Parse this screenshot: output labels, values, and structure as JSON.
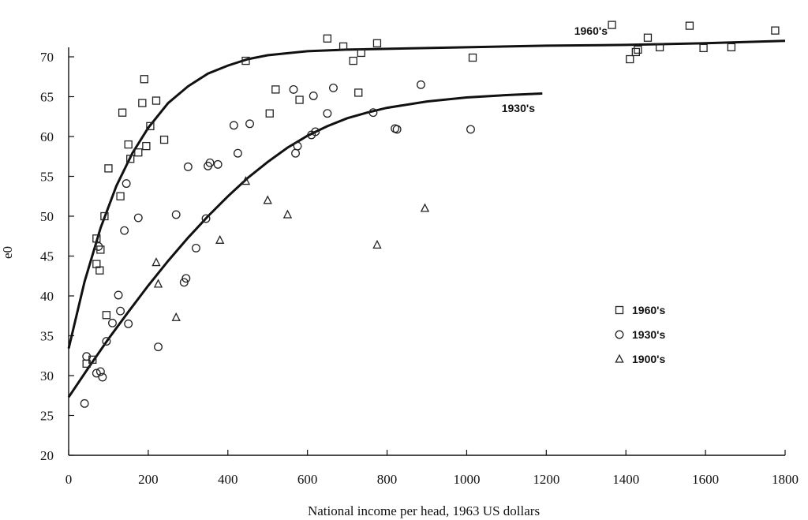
{
  "chart_data": {
    "type": "scatter",
    "title": "",
    "xlabel": "National income per head, 1963 US dollars",
    "ylabel": "e0",
    "xlim": [
      0,
      1800
    ],
    "ylim": [
      20,
      72
    ],
    "x_ticks": [
      0,
      200,
      400,
      600,
      800,
      1000,
      1200,
      1400,
      1600,
      1800
    ],
    "y_ticks": [
      20,
      25,
      30,
      35,
      40,
      45,
      50,
      55,
      60,
      65,
      70
    ],
    "grid": false,
    "legend_position": "bottom-right",
    "series": [
      {
        "name": "1960's",
        "marker": "square",
        "points": [
          [
            45,
            31.5
          ],
          [
            60,
            32
          ],
          [
            70,
            44
          ],
          [
            70,
            47.2
          ],
          [
            78,
            43.2
          ],
          [
            80,
            45.8
          ],
          [
            90,
            50
          ],
          [
            95,
            37.6
          ],
          [
            100,
            56
          ],
          [
            130,
            52.5
          ],
          [
            135,
            63
          ],
          [
            150,
            59
          ],
          [
            155,
            57.2
          ],
          [
            175,
            58
          ],
          [
            185,
            64.2
          ],
          [
            190,
            67.2
          ],
          [
            195,
            58.8
          ],
          [
            205,
            61.3
          ],
          [
            220,
            64.5
          ],
          [
            240,
            59.6
          ],
          [
            445,
            69.5
          ],
          [
            505,
            62.9
          ],
          [
            520,
            65.9
          ],
          [
            580,
            64.6
          ],
          [
            650,
            72.3
          ],
          [
            690,
            71.3
          ],
          [
            715,
            69.5
          ],
          [
            728,
            65.5
          ],
          [
            735,
            70.5
          ],
          [
            775,
            71.7
          ],
          [
            1015,
            69.9
          ],
          [
            1365,
            74
          ],
          [
            1410,
            69.7
          ],
          [
            1425,
            70.6
          ],
          [
            1430,
            70.9
          ],
          [
            1455,
            72.4
          ],
          [
            1485,
            71.2
          ],
          [
            1560,
            73.9
          ],
          [
            1595,
            71.1
          ],
          [
            1665,
            71.2
          ],
          [
            1775,
            73.3
          ]
        ]
      },
      {
        "name": "1930's",
        "marker": "circle",
        "points": [
          [
            40,
            26.5
          ],
          [
            45,
            32.4
          ],
          [
            70,
            30.3
          ],
          [
            75,
            46.2
          ],
          [
            80,
            30.5
          ],
          [
            85,
            29.8
          ],
          [
            95,
            34.3
          ],
          [
            110,
            36.6
          ],
          [
            125,
            40.1
          ],
          [
            130,
            38.1
          ],
          [
            140,
            48.2
          ],
          [
            145,
            54.1
          ],
          [
            150,
            36.5
          ],
          [
            175,
            49.8
          ],
          [
            225,
            33.6
          ],
          [
            270,
            50.2
          ],
          [
            290,
            41.7
          ],
          [
            295,
            42.2
          ],
          [
            300,
            56.2
          ],
          [
            320,
            46
          ],
          [
            345,
            49.7
          ],
          [
            350,
            56.3
          ],
          [
            355,
            56.7
          ],
          [
            375,
            56.5
          ],
          [
            415,
            61.4
          ],
          [
            425,
            57.9
          ],
          [
            455,
            61.6
          ],
          [
            565,
            65.9
          ],
          [
            570,
            57.9
          ],
          [
            575,
            58.8
          ],
          [
            610,
            60.2
          ],
          [
            615,
            65.1
          ],
          [
            620,
            60.6
          ],
          [
            650,
            62.9
          ],
          [
            665,
            66.1
          ],
          [
            765,
            63
          ],
          [
            820,
            61
          ],
          [
            825,
            60.9
          ],
          [
            885,
            66.5
          ],
          [
            1010,
            60.9
          ]
        ]
      },
      {
        "name": "1900's",
        "marker": "triangle",
        "points": [
          [
            220,
            44.2
          ],
          [
            225,
            41.5
          ],
          [
            270,
            37.3
          ],
          [
            380,
            47
          ],
          [
            445,
            54.4
          ],
          [
            500,
            52
          ],
          [
            550,
            50.2
          ],
          [
            775,
            46.4
          ],
          [
            895,
            51
          ]
        ]
      }
    ],
    "fitted_curves": [
      {
        "label": "1960's",
        "points": [
          [
            0,
            33.4
          ],
          [
            40,
            41.8
          ],
          [
            80,
            48.5
          ],
          [
            120,
            53.8
          ],
          [
            160,
            57.9
          ],
          [
            200,
            61.1
          ],
          [
            250,
            64.2
          ],
          [
            300,
            66.3
          ],
          [
            350,
            67.9
          ],
          [
            400,
            68.9
          ],
          [
            450,
            69.7
          ],
          [
            500,
            70.2
          ],
          [
            600,
            70.7
          ],
          [
            700,
            70.9
          ],
          [
            800,
            71
          ],
          [
            1000,
            71.2
          ],
          [
            1200,
            71.4
          ],
          [
            1400,
            71.5
          ],
          [
            1600,
            71.7
          ],
          [
            1800,
            72
          ]
        ]
      },
      {
        "label": "1930's",
        "points": [
          [
            0,
            27.3
          ],
          [
            50,
            31
          ],
          [
            100,
            34.6
          ],
          [
            150,
            38
          ],
          [
            200,
            41.3
          ],
          [
            250,
            44.4
          ],
          [
            300,
            47.3
          ],
          [
            350,
            50
          ],
          [
            400,
            52.5
          ],
          [
            450,
            54.8
          ],
          [
            500,
            56.8
          ],
          [
            550,
            58.6
          ],
          [
            600,
            60.1
          ],
          [
            650,
            61.3
          ],
          [
            700,
            62.3
          ],
          [
            750,
            63
          ],
          [
            800,
            63.6
          ],
          [
            900,
            64.4
          ],
          [
            1000,
            64.9
          ],
          [
            1100,
            65.2
          ],
          [
            1190,
            65.4
          ]
        ]
      }
    ]
  }
}
